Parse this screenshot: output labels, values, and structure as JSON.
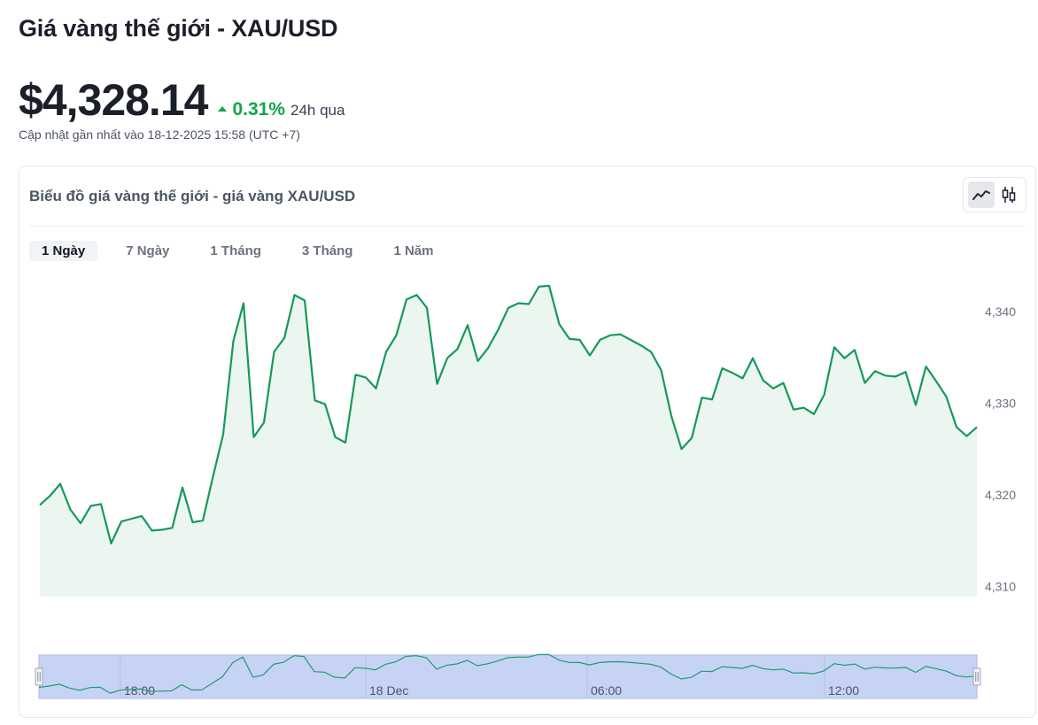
{
  "page": {
    "title": "Giá vàng thế giới - XAU/USD",
    "price": "$4,328.14",
    "change_percent": "0.31%",
    "change_period": "24h qua",
    "updated": "Cập nhật gần nhất vào 18-12-2025 15:58 (UTC +7)"
  },
  "card": {
    "title": "Biểu đồ giá vàng thế giới - giá vàng XAU/USD",
    "chart_types": [
      {
        "icon": "line-chart-icon",
        "active": true
      },
      {
        "icon": "candlestick-chart-icon",
        "active": false
      }
    ],
    "tabs": [
      {
        "label": "1 Ngày",
        "active": true
      },
      {
        "label": "7 Ngày",
        "active": false
      },
      {
        "label": "1 Tháng",
        "active": false
      },
      {
        "label": "3 Tháng",
        "active": false
      },
      {
        "label": "1 Năm",
        "active": false
      }
    ]
  },
  "colors": {
    "line": "#16995a",
    "area": "#ecf6f0",
    "up": "#16a34a",
    "navigator_bg": "#c7d3f5",
    "navigator_line": "#1f9a75",
    "axis_text": "#6b7280"
  },
  "chart_data": {
    "type": "area",
    "series": [
      {
        "values": [
          4318.9,
          4319.9,
          4321.2,
          4318.4,
          4316.9,
          4318.8,
          4319.0,
          4314.7,
          4317.1,
          4317.4,
          4317.7,
          4316.1,
          4316.2,
          4316.4,
          4320.8,
          4317.0,
          4317.2,
          4322.0,
          4326.6,
          4336.8,
          4340.9,
          4326.3,
          4327.9,
          4335.6,
          4337.1,
          4341.8,
          4341.2,
          4330.3,
          4329.9,
          4326.3,
          4325.7,
          4333.1,
          4332.8,
          4331.6,
          4335.6,
          4337.4,
          4341.3,
          4341.8,
          4340.4,
          4332.1,
          4334.9,
          4335.9,
          4338.5,
          4334.6,
          4336.0,
          4338.0,
          4340.4,
          4340.9,
          4340.8,
          4342.7,
          4342.8,
          4338.6,
          4337.0,
          4336.9,
          4335.2,
          4336.9,
          4337.4,
          4337.5,
          4336.9,
          4336.3,
          4335.6,
          4333.6,
          4328.6,
          4325.0,
          4326.2,
          4330.6,
          4330.4,
          4333.8,
          4333.3,
          4332.7,
          4334.9,
          4332.5,
          4331.6,
          4332.2,
          4329.3,
          4329.5,
          4328.8,
          4330.9,
          4336.1,
          4334.9,
          4335.8,
          4332.2,
          4333.5,
          4333.0,
          4332.9,
          4333.4,
          4329.8,
          4334.0,
          4332.4,
          4330.7,
          4327.4,
          4326.4,
          4327.4
        ]
      }
    ],
    "x_labels": [
      "18:00",
      "18 Dec",
      "06:00",
      "12:00"
    ],
    "y_ticks": [
      4310,
      4320,
      4330,
      4340
    ],
    "ylim": [
      4309,
      4345
    ],
    "grid": false,
    "legend": "none"
  }
}
